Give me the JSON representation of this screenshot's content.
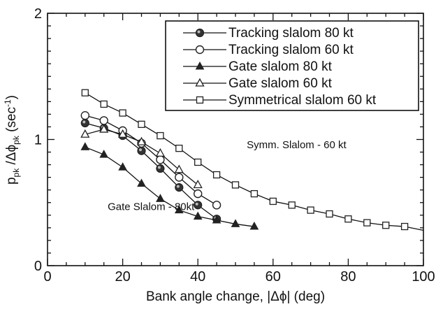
{
  "chart_data": {
    "type": "line",
    "xlabel": "Bank angle change, |Δϕ|  (deg)",
    "ylabel": {
      "p": "p",
      "p_sub": "pk",
      "mid": " /Δϕ",
      "phi_sub": "pk",
      "unit_open": "  (sec",
      "unit_sup": "-1",
      "unit_close": ")"
    },
    "xlim": [
      0,
      100
    ],
    "ylim": [
      0,
      2
    ],
    "x_ticks": [
      0,
      20,
      40,
      60,
      80,
      100
    ],
    "y_ticks": [
      0,
      1,
      2
    ],
    "x_tick_labels": [
      "0",
      "20",
      "40",
      "60",
      "80",
      "100"
    ],
    "y_tick_labels": [
      "0",
      "1",
      "2"
    ],
    "grid": false,
    "legend_position": "top-right",
    "series": [
      {
        "name": "Tracking slalom 80 kt",
        "marker": "circle-filled",
        "x": [
          10,
          15,
          20,
          25,
          30,
          35,
          40,
          45
        ],
        "y": [
          1.13,
          1.09,
          1.03,
          0.91,
          0.77,
          0.62,
          0.48,
          0.37
        ]
      },
      {
        "name": "Tracking slalom 60 kt",
        "marker": "circle-open",
        "x": [
          10,
          15,
          20,
          25,
          30,
          35,
          40,
          45
        ],
        "y": [
          1.19,
          1.15,
          1.07,
          0.97,
          0.84,
          0.7,
          0.57,
          0.48
        ]
      },
      {
        "name": "Gate slalom 80 kt",
        "marker": "triangle-filled",
        "x": [
          10,
          15,
          20,
          25,
          30,
          35,
          40,
          45,
          50,
          55
        ],
        "y": [
          0.94,
          0.88,
          0.78,
          0.65,
          0.53,
          0.44,
          0.39,
          0.36,
          0.33,
          0.31
        ]
      },
      {
        "name": "Gate slalom 60 kt",
        "marker": "triangle-open",
        "x": [
          10,
          15,
          20,
          25,
          30,
          35,
          40
        ],
        "y": [
          1.04,
          1.08,
          1.04,
          0.98,
          0.89,
          0.76,
          0.64
        ]
      },
      {
        "name": "Symmetrical slalom 60 kt",
        "marker": "square-open",
        "x": [
          10,
          15,
          20,
          25,
          30,
          35,
          40,
          45,
          50,
          55,
          60,
          65,
          70,
          75,
          80,
          85,
          90,
          95
        ],
        "y": [
          1.37,
          1.28,
          1.21,
          1.12,
          1.03,
          0.93,
          0.82,
          0.72,
          0.64,
          0.57,
          0.51,
          0.48,
          0.44,
          0.41,
          0.37,
          0.34,
          0.32,
          0.31
        ]
      }
    ],
    "extra_line": {
      "x": [
        95,
        100
      ],
      "y": [
        0.31,
        0.28
      ]
    },
    "annotations": [
      {
        "text": "Symm. Slalom - 60 kt",
        "x": 53,
        "y": 0.93
      },
      {
        "text": "Gate Slalom - 80kt",
        "x": 16,
        "y": 0.44
      }
    ]
  }
}
